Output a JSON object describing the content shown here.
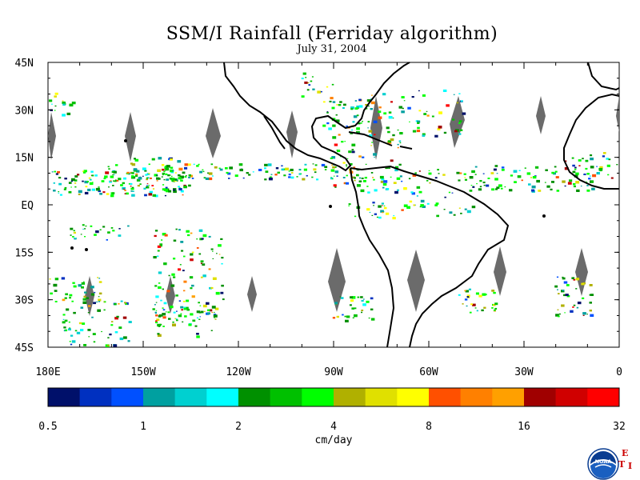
{
  "title": "SSM/I Rainfall (Ferriday algorithm)",
  "subtitle": "July 31, 2004",
  "map": {
    "lon_range": [
      -180,
      0
    ],
    "lat_range": [
      -45,
      45
    ],
    "lat_labels": [
      "45N",
      "30N",
      "15N",
      "EQ",
      "15S",
      "30S",
      "45S"
    ],
    "lat_values": [
      45,
      30,
      15,
      0,
      -15,
      -30,
      -45
    ],
    "lon_labels": [
      "180E",
      "150W",
      "120W",
      "90W",
      "60W",
      "30W",
      "0"
    ],
    "lon_values": [
      -180,
      -150,
      -120,
      -90,
      -60,
      -30,
      0
    ],
    "missing_data_color": "#6b6b6b",
    "coastline_color": "#000000"
  },
  "colorbar": {
    "unit_label": "cm/day",
    "tick_labels": [
      "0.5",
      "1",
      "2",
      "4",
      "8",
      "16",
      "32"
    ],
    "colors": [
      "#00106a",
      "#0030c0",
      "#0050ff",
      "#00a0a0",
      "#00d0d0",
      "#00ffff",
      "#009000",
      "#00c000",
      "#00ff00",
      "#b0b000",
      "#e0e000",
      "#ffff00",
      "#ff5000",
      "#ff8000",
      "#ffa000",
      "#a00000",
      "#d00000",
      "#ff0000"
    ]
  },
  "logo": {
    "name": "noaa-logo",
    "text": "NOAA",
    "side_letters": [
      "E",
      "T",
      "I"
    ]
  }
}
